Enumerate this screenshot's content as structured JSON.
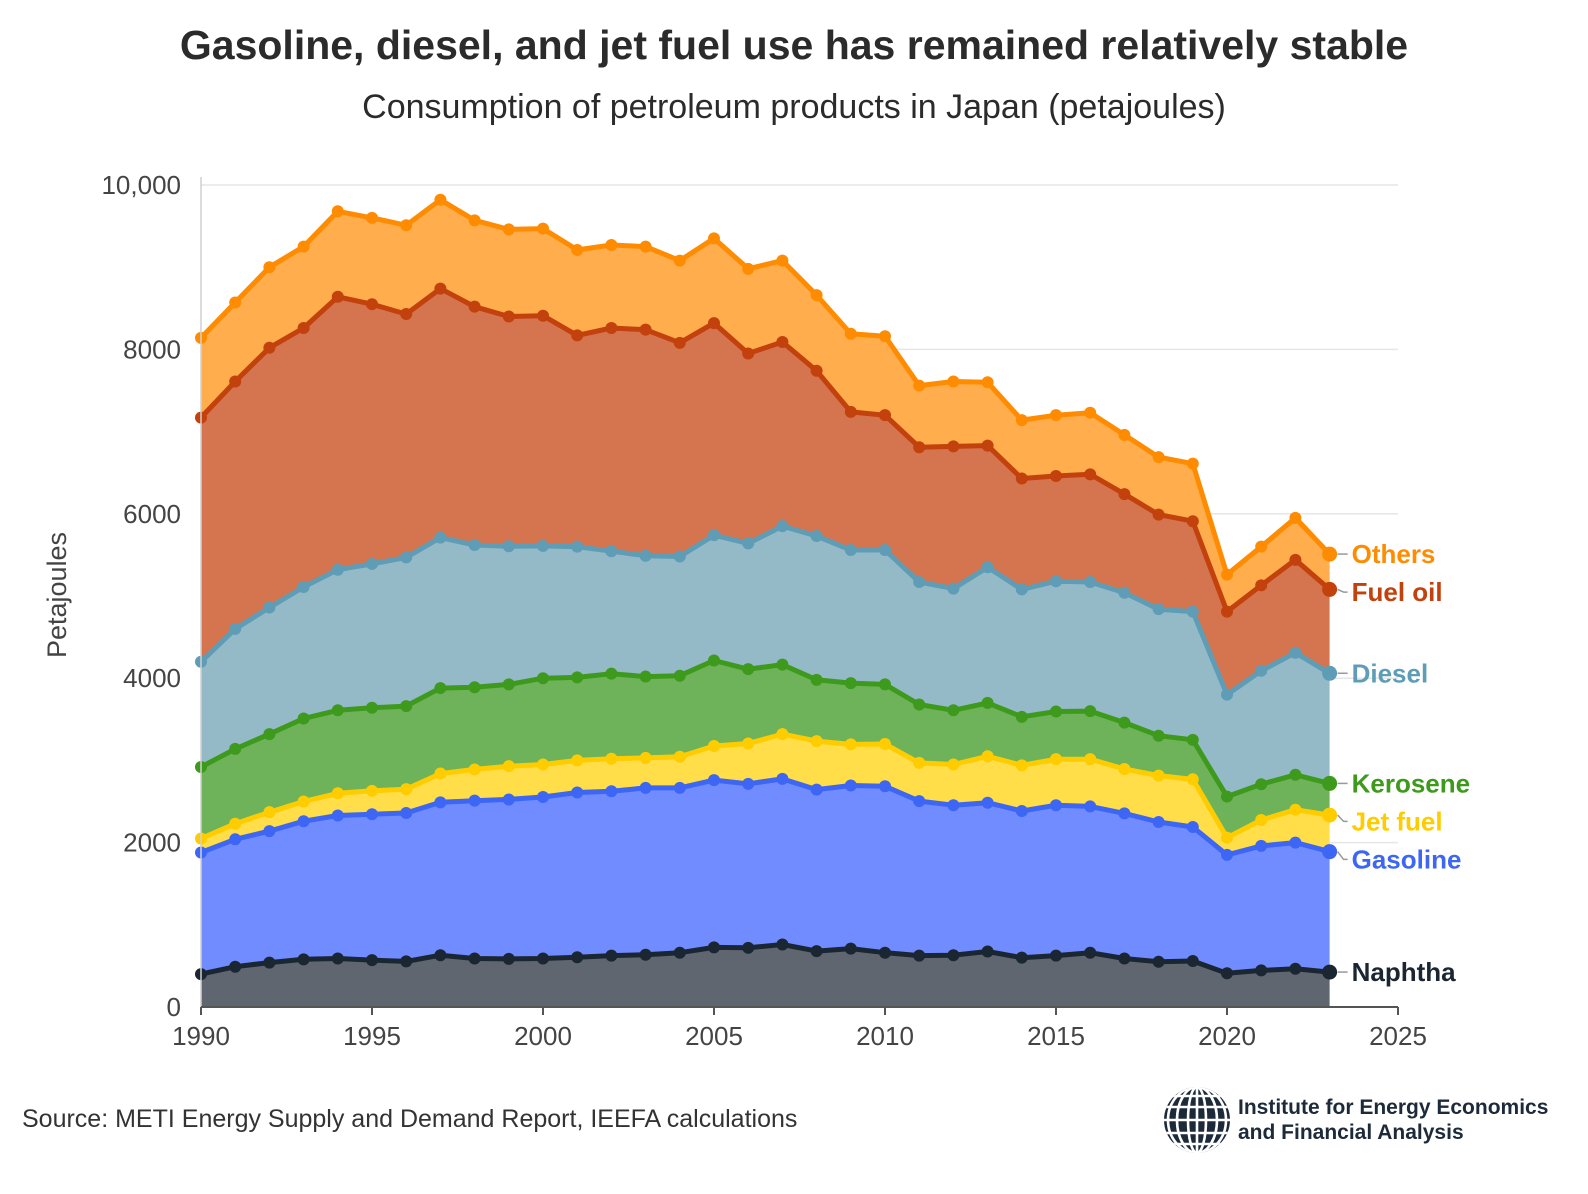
{
  "header": {
    "title": "Gasoline, diesel, and jet fuel use has remained relatively stable",
    "subtitle": "Consumption of petroleum products in Japan (petajoules)"
  },
  "footer": {
    "source": "Source: METI Energy Supply and Demand Report, IEEFA calculations",
    "logo_line1": "Institute for Energy Economics",
    "logo_line2": "and Financial Analysis"
  },
  "chart_data": {
    "type": "area",
    "stacked": true,
    "ylabel": "Petajoules",
    "ylim": [
      0,
      10000
    ],
    "xlim": [
      1990,
      2025
    ],
    "yticks": [
      "0",
      "2000",
      "4000",
      "6000",
      "8000",
      "10,000"
    ],
    "ytick_values": [
      0,
      2000,
      4000,
      6000,
      8000,
      10000
    ],
    "xticks": [
      "1990",
      "1995",
      "2000",
      "2005",
      "2010",
      "2015",
      "2020",
      "2025"
    ],
    "xtick_values": [
      1990,
      1995,
      2000,
      2005,
      2010,
      2015,
      2020,
      2025
    ],
    "grid": "horizontal",
    "x": [
      1990,
      1991,
      1992,
      1993,
      1994,
      1995,
      1996,
      1997,
      1998,
      1999,
      2000,
      2001,
      2002,
      2003,
      2004,
      2005,
      2006,
      2007,
      2008,
      2009,
      2010,
      2011,
      2012,
      2013,
      2014,
      2015,
      2016,
      2017,
      2018,
      2019,
      2020,
      2021,
      2022,
      2023
    ],
    "cumulative_series": [
      {
        "name": "Naphtha",
        "color": "#1b2633",
        "fill": "#5f6670",
        "values": [
          400,
          490,
          540,
          580,
          590,
          570,
          555,
          630,
          590,
          585,
          590,
          605,
          625,
          635,
          660,
          725,
          720,
          760,
          680,
          710,
          660,
          625,
          630,
          675,
          600,
          625,
          660,
          590,
          550,
          560,
          410,
          445,
          465,
          425
        ]
      },
      {
        "name": "Gasoline",
        "color": "#3d66f5",
        "fill": "#708cff",
        "values": [
          1880,
          2040,
          2140,
          2260,
          2330,
          2345,
          2360,
          2490,
          2510,
          2525,
          2555,
          2610,
          2625,
          2665,
          2665,
          2760,
          2715,
          2775,
          2645,
          2695,
          2685,
          2505,
          2455,
          2485,
          2385,
          2455,
          2440,
          2355,
          2250,
          2190,
          1850,
          1960,
          2000,
          1890
        ]
      },
      {
        "name": "Jet fuel",
        "color": "#ffcc00",
        "fill": "#ffde4a",
        "values": [
          2050,
          2230,
          2370,
          2500,
          2600,
          2630,
          2650,
          2840,
          2890,
          2930,
          2950,
          3000,
          3020,
          3030,
          3045,
          3175,
          3205,
          3320,
          3235,
          3195,
          3200,
          2970,
          2950,
          3050,
          2940,
          3015,
          3015,
          2895,
          2815,
          2770,
          2060,
          2275,
          2400,
          2335
        ]
      },
      {
        "name": "Kerosene",
        "color": "#3e9a1c",
        "fill": "#6eb35a",
        "values": [
          2920,
          3140,
          3320,
          3510,
          3610,
          3640,
          3660,
          3880,
          3890,
          3925,
          4000,
          4010,
          4055,
          4020,
          4030,
          4215,
          4110,
          4165,
          3980,
          3940,
          3925,
          3680,
          3610,
          3700,
          3530,
          3595,
          3600,
          3460,
          3300,
          3250,
          2560,
          2710,
          2825,
          2720
        ]
      },
      {
        "name": "Diesel",
        "color": "#5e9db5",
        "fill": "#94bac8",
        "values": [
          4200,
          4600,
          4860,
          5110,
          5320,
          5390,
          5470,
          5710,
          5620,
          5605,
          5610,
          5600,
          5545,
          5490,
          5480,
          5740,
          5640,
          5850,
          5730,
          5560,
          5560,
          5170,
          5090,
          5350,
          5080,
          5180,
          5170,
          5040,
          4840,
          4810,
          3800,
          4090,
          4310,
          4060
        ]
      },
      {
        "name": "Fuel oil",
        "color": "#c2410c",
        "fill": "#d47550",
        "values": [
          7170,
          7610,
          8020,
          8260,
          8640,
          8550,
          8430,
          8740,
          8520,
          8400,
          8410,
          8170,
          8260,
          8240,
          8080,
          8320,
          7950,
          8090,
          7740,
          7240,
          7200,
          6810,
          6820,
          6830,
          6430,
          6460,
          6480,
          6240,
          5990,
          5910,
          4810,
          5130,
          5440,
          5080
        ]
      },
      {
        "name": "Others",
        "color": "#ff8c00",
        "fill": "#ffad4d",
        "values": [
          8140,
          8570,
          9000,
          9250,
          9680,
          9600,
          9510,
          9820,
          9570,
          9460,
          9470,
          9210,
          9270,
          9250,
          9080,
          9350,
          8980,
          9080,
          8660,
          8190,
          8160,
          7560,
          7610,
          7600,
          7140,
          7200,
          7230,
          6960,
          6690,
          6610,
          5260,
          5600,
          5950,
          5510
        ]
      }
    ],
    "series_labels": [
      "Others",
      "Fuel oil",
      "Diesel",
      "Kerosene",
      "Jet fuel",
      "Gasoline",
      "Naphtha"
    ]
  }
}
